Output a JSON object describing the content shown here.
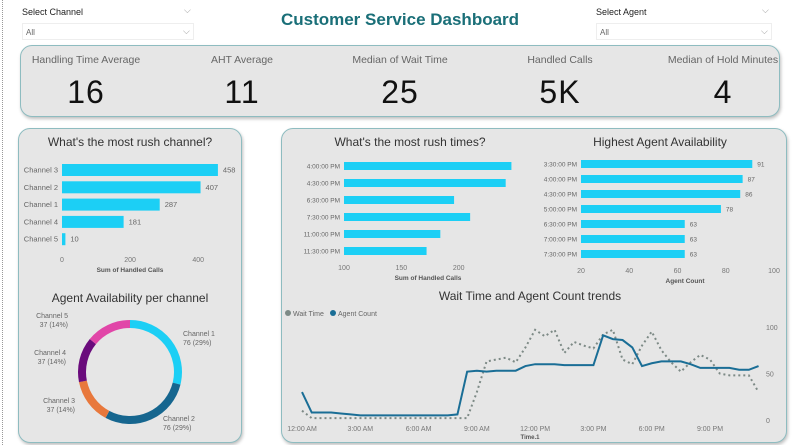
{
  "header": {
    "title": "Customer Service Dashboard"
  },
  "slicers": {
    "channel": {
      "label": "Select Channel",
      "value": "All"
    },
    "agent": {
      "label": "Select Agent",
      "value": "All"
    }
  },
  "kpis": [
    {
      "label": "Handling Time Average",
      "value": "16"
    },
    {
      "label": "AHT Average",
      "value": "11"
    },
    {
      "label": "Median of Wait Time",
      "value": "25"
    },
    {
      "label": "Handled Calls",
      "value": "5K"
    },
    {
      "label": "Median of Hold Minutes",
      "value": "4"
    }
  ],
  "colors": {
    "bar": "#1ccff5",
    "agent_line": "#1a6e96",
    "wait_line": "#7d8a86",
    "title": "#1a6f78"
  },
  "chart_data": [
    {
      "type": "bar",
      "orientation": "horizontal",
      "title": "What's the most rush channel?",
      "xlabel": "Sum of Handled Calls",
      "categories": [
        "Channel 3",
        "Channel 2",
        "Channel 1",
        "Channel 4",
        "Channel 5"
      ],
      "values": [
        458,
        407,
        287,
        181,
        10
      ],
      "xlim": [
        0,
        470
      ],
      "xticks": [
        "0",
        "200",
        "400"
      ],
      "data_labels": true
    },
    {
      "type": "pie",
      "donut": true,
      "title": "Agent Availability per channel",
      "categories": [
        "Channel 1",
        "Channel 2",
        "Channel 3",
        "Channel 4",
        "Channel 5"
      ],
      "values": [
        76,
        76,
        37,
        37,
        37
      ],
      "labels": [
        "76 (29%)",
        "76 (29%)",
        "37 (14%)",
        "37 (14%)",
        "37 (14%)"
      ],
      "colors": [
        "#1ccff5",
        "#16668f",
        "#e8783c",
        "#6a0b7c",
        "#e146a8"
      ]
    },
    {
      "type": "bar",
      "orientation": "horizontal",
      "title": "What's the most rush times?",
      "xlabel": "Sum of Handled Calls",
      "categories": [
        "4:00:00 PM",
        "4:30:00 PM",
        "6:30:00 PM",
        "7:30:00 PM",
        "11:00:00 PM",
        "11:30:00 PM"
      ],
      "values": [
        246,
        241,
        196,
        210,
        184,
        172
      ],
      "xlim": [
        100,
        250
      ],
      "xticks": [
        "100",
        "150",
        "200"
      ]
    },
    {
      "type": "bar",
      "orientation": "horizontal",
      "title": "Highest Agent Availability",
      "xlabel": "Agent Count",
      "categories": [
        "3:30:00 PM",
        "4:00:00 PM",
        "4:30:00 PM",
        "5:00:00 PM",
        "6:30:00 PM",
        "7:00:00 PM",
        "7:30:00 PM"
      ],
      "values": [
        91,
        87,
        86,
        78,
        63,
        63,
        63
      ],
      "xlim": [
        20,
        100
      ],
      "xticks": [
        "20",
        "40",
        "60",
        "80",
        "100"
      ],
      "data_labels": true
    },
    {
      "type": "line",
      "title": "Wait Time and Agent Count trends",
      "xlabel": "Time.1",
      "legend": "top-left",
      "ylim": [
        0,
        100
      ],
      "yticks": [
        "0",
        "50",
        "100"
      ],
      "xticks": [
        "12:00 AM",
        "3:00 AM",
        "6:00 AM",
        "9:00 AM",
        "12:00 PM",
        "3:00 PM",
        "6:00 PM",
        "9:00 PM"
      ],
      "x_hours": [
        0,
        0.5,
        1,
        1.5,
        2,
        2.5,
        3,
        3.5,
        4,
        4.5,
        5,
        5.5,
        6,
        6.5,
        7,
        7.5,
        8,
        8.5,
        9,
        9.5,
        10,
        10.5,
        11,
        11.5,
        12,
        12.5,
        13,
        13.5,
        14,
        14.5,
        15,
        15.5,
        16,
        16.5,
        17,
        17.5,
        18,
        18.5,
        19,
        19.5,
        20,
        20.5,
        21,
        21.5,
        22,
        22.5,
        23,
        23.5
      ],
      "series": [
        {
          "name": "Wait Time",
          "style": "dotted",
          "values": [
            10,
            2,
            2,
            2,
            2,
            2,
            2,
            2,
            2,
            2,
            2,
            2,
            2,
            2,
            2,
            2,
            2,
            2,
            30,
            63,
            65,
            67,
            62,
            78,
            97,
            90,
            97,
            72,
            84,
            80,
            77,
            92,
            97,
            65,
            60,
            80,
            95,
            75,
            62,
            52,
            62,
            70,
            65,
            50,
            48,
            48,
            48,
            30
          ]
        },
        {
          "name": "Agent Count",
          "style": "solid",
          "values": [
            30,
            8,
            8,
            8,
            7,
            6,
            5,
            5,
            5,
            5,
            5,
            5,
            5,
            5,
            5,
            5,
            6,
            52,
            53,
            52,
            53,
            53,
            53,
            58,
            60,
            60,
            60,
            59,
            59,
            59,
            59,
            91,
            87,
            86,
            78,
            58,
            61,
            63,
            63,
            63,
            60,
            56,
            56,
            56,
            56,
            54,
            54,
            58
          ]
        }
      ]
    }
  ]
}
